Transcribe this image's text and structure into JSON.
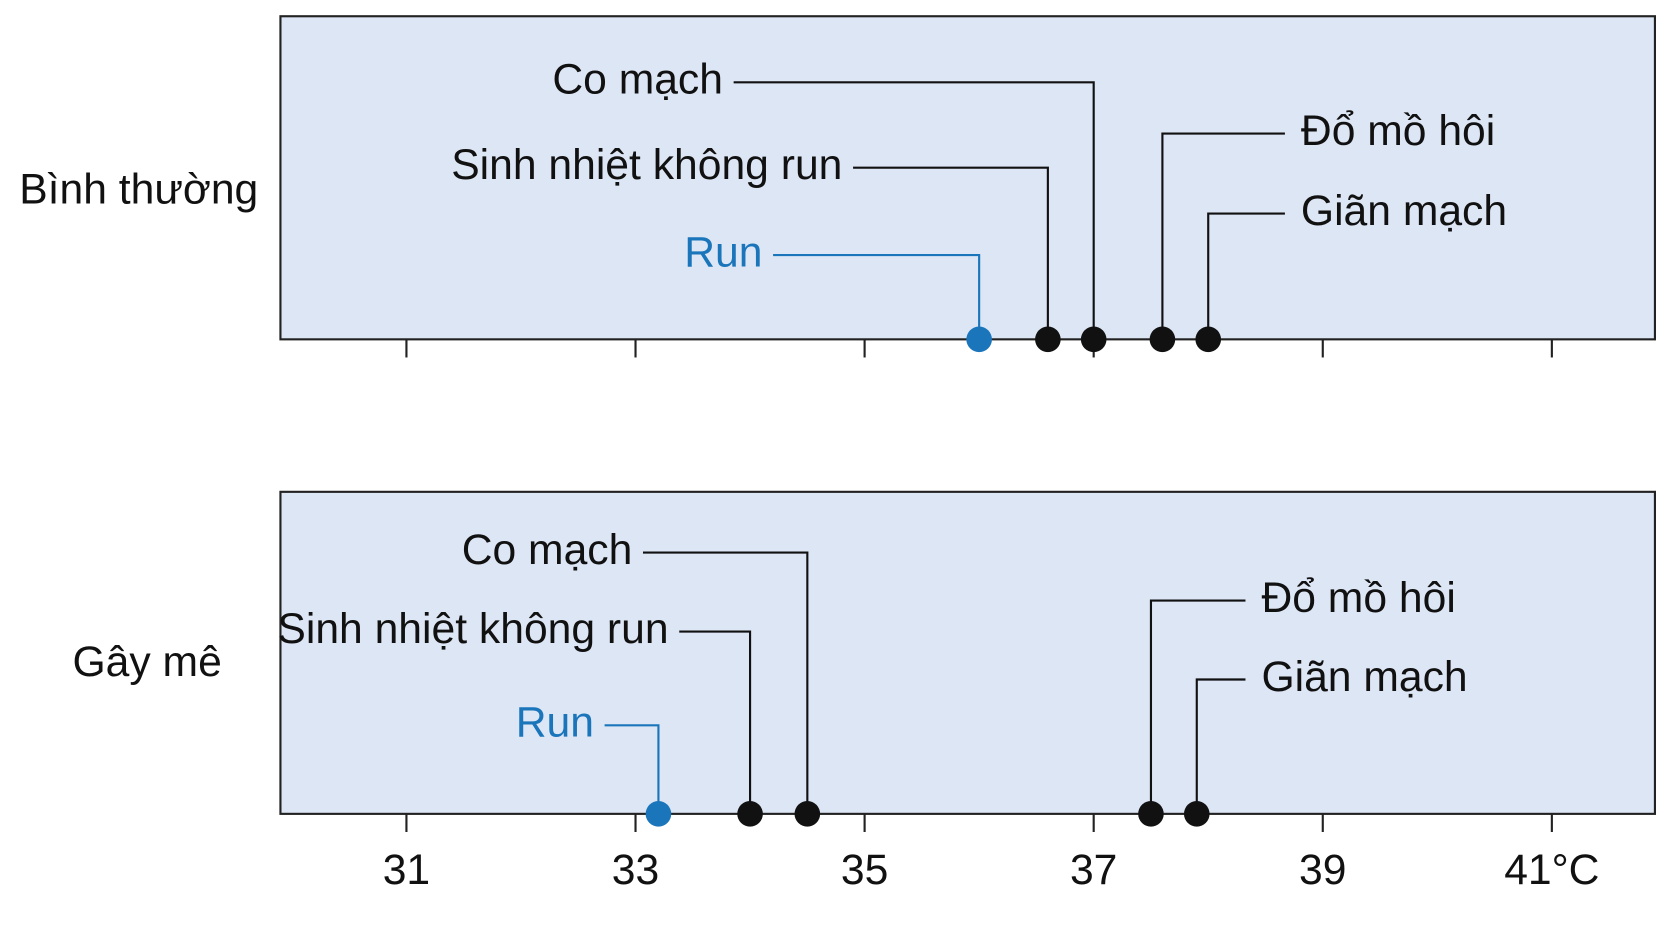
{
  "chart_data": [
    {
      "type": "dotline",
      "label": "Bình thường",
      "categories": [
        "Run",
        "Sinh nhiệt không run",
        "Co mạch",
        "Đổ mồ hôi",
        "Giãn mạch"
      ],
      "values": [
        36.0,
        36.6,
        37.0,
        37.6,
        38.0
      ],
      "colors": [
        "#1b75bb",
        "#111111",
        "#111111",
        "#111111",
        "#111111"
      ],
      "xlim": [
        29.9,
        41.9
      ],
      "xticks": [
        31,
        33,
        35,
        37,
        39,
        41
      ],
      "tick_labels": false
    },
    {
      "type": "dotline",
      "label": "Gây mê",
      "categories": [
        "Run",
        "Sinh nhiệt không run",
        "Co mạch",
        "Đổ mồ hôi",
        "Giãn mạch"
      ],
      "values": [
        33.2,
        34.0,
        34.5,
        37.5,
        37.9
      ],
      "colors": [
        "#1b75bb",
        "#111111",
        "#111111",
        "#111111",
        "#111111"
      ],
      "xlim": [
        29.9,
        41.9
      ],
      "xticks": [
        31,
        33,
        35,
        37,
        39,
        {
          "value": 41,
          "label": "41°C"
        }
      ],
      "tick_labels": true
    }
  ]
}
